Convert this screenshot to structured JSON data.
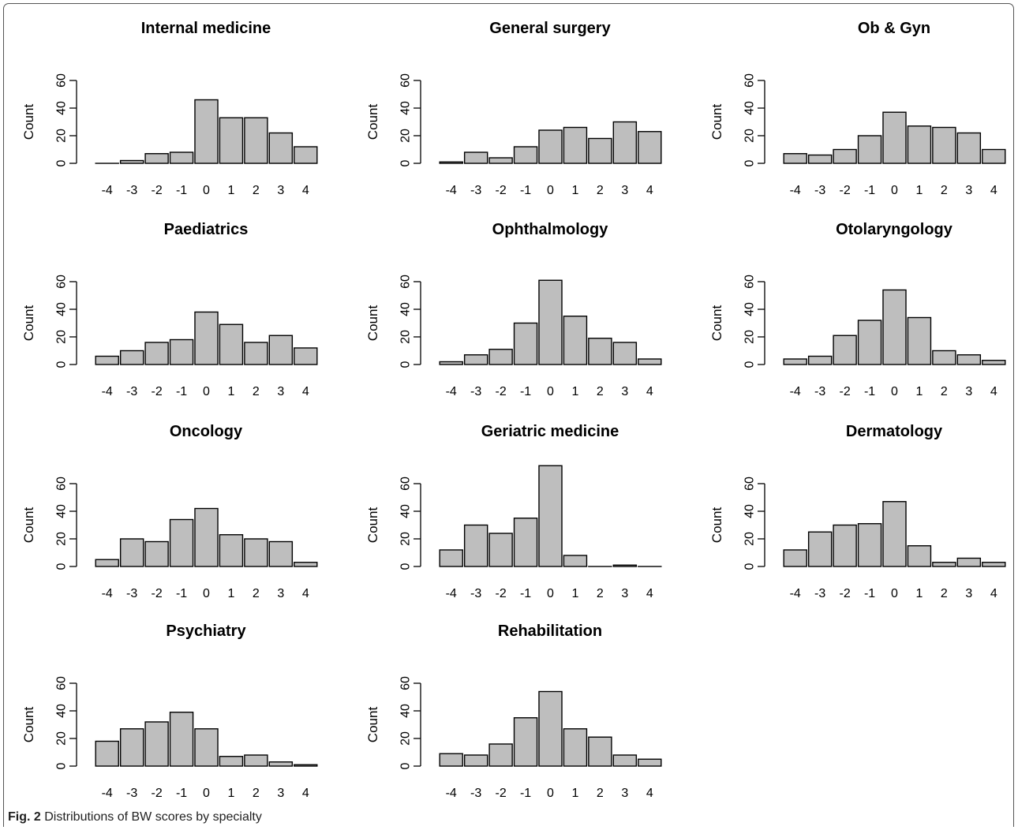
{
  "caption": {
    "label": "Fig. 2",
    "text": " Distributions of BW scores by specialty"
  },
  "style": {
    "bar_fill": "#bebebe",
    "bar_stroke": "#000000",
    "axis_color": "#000000",
    "text_color": "#000000"
  },
  "chart_data": [
    {
      "type": "bar",
      "title": "Internal medicine",
      "ylabel": "Count",
      "xlabel": "",
      "categories": [
        "-4",
        "-3",
        "-2",
        "-1",
        "0",
        "1",
        "2",
        "3",
        "4"
      ],
      "values": [
        0,
        2,
        7,
        8,
        46,
        33,
        33,
        22,
        12
      ],
      "yticks": [
        0,
        20,
        40,
        60
      ],
      "ylim": [
        0,
        70
      ],
      "grid": false
    },
    {
      "type": "bar",
      "title": "General surgery",
      "ylabel": "Count",
      "xlabel": "",
      "categories": [
        "-4",
        "-3",
        "-2",
        "-1",
        "0",
        "1",
        "2",
        "3",
        "4"
      ],
      "values": [
        1,
        8,
        4,
        12,
        24,
        26,
        18,
        30,
        23
      ],
      "yticks": [
        0,
        20,
        40,
        60
      ],
      "ylim": [
        0,
        70
      ],
      "grid": false
    },
    {
      "type": "bar",
      "title": "Ob & Gyn",
      "ylabel": "Count",
      "xlabel": "",
      "categories": [
        "-4",
        "-3",
        "-2",
        "-1",
        "0",
        "1",
        "2",
        "3",
        "4"
      ],
      "values": [
        7,
        6,
        10,
        20,
        37,
        27,
        26,
        22,
        10
      ],
      "yticks": [
        0,
        20,
        40,
        60
      ],
      "ylim": [
        0,
        70
      ],
      "grid": false
    },
    {
      "type": "bar",
      "title": "Paediatrics",
      "ylabel": "Count",
      "xlabel": "",
      "categories": [
        "-4",
        "-3",
        "-2",
        "-1",
        "0",
        "1",
        "2",
        "3",
        "4"
      ],
      "values": [
        6,
        10,
        16,
        18,
        38,
        29,
        16,
        21,
        12
      ],
      "yticks": [
        0,
        20,
        40,
        60
      ],
      "ylim": [
        0,
        70
      ],
      "grid": false
    },
    {
      "type": "bar",
      "title": "Ophthalmology",
      "ylabel": "Count",
      "xlabel": "",
      "categories": [
        "-4",
        "-3",
        "-2",
        "-1",
        "0",
        "1",
        "2",
        "3",
        "4"
      ],
      "values": [
        2,
        7,
        11,
        30,
        61,
        35,
        19,
        16,
        4
      ],
      "yticks": [
        0,
        20,
        40,
        60
      ],
      "ylim": [
        0,
        70
      ],
      "grid": false
    },
    {
      "type": "bar",
      "title": "Otolaryngology",
      "ylabel": "Count",
      "xlabel": "",
      "categories": [
        "-4",
        "-3",
        "-2",
        "-1",
        "0",
        "1",
        "2",
        "3",
        "4"
      ],
      "values": [
        4,
        6,
        21,
        32,
        54,
        34,
        10,
        7,
        3
      ],
      "yticks": [
        0,
        20,
        40,
        60
      ],
      "ylim": [
        0,
        70
      ],
      "grid": false
    },
    {
      "type": "bar",
      "title": "Oncology",
      "ylabel": "Count",
      "xlabel": "",
      "categories": [
        "-4",
        "-3",
        "-2",
        "-1",
        "0",
        "1",
        "2",
        "3",
        "4"
      ],
      "values": [
        5,
        20,
        18,
        34,
        42,
        23,
        20,
        18,
        3
      ],
      "yticks": [
        0,
        20,
        40,
        60
      ],
      "ylim": [
        0,
        70
      ],
      "grid": false
    },
    {
      "type": "bar",
      "title": "Geriatric medicine",
      "ylabel": "Count",
      "xlabel": "",
      "categories": [
        "-4",
        "-3",
        "-2",
        "-1",
        "0",
        "1",
        "2",
        "3",
        "4"
      ],
      "values": [
        12,
        30,
        24,
        35,
        73,
        8,
        0,
        1,
        0
      ],
      "yticks": [
        0,
        20,
        40,
        60
      ],
      "ylim": [
        0,
        70
      ],
      "grid": false
    },
    {
      "type": "bar",
      "title": "Dermatology",
      "ylabel": "Count",
      "xlabel": "",
      "categories": [
        "-4",
        "-3",
        "-2",
        "-1",
        "0",
        "1",
        "2",
        "3",
        "4"
      ],
      "values": [
        12,
        25,
        30,
        31,
        47,
        15,
        3,
        6,
        3
      ],
      "yticks": [
        0,
        20,
        40,
        60
      ],
      "ylim": [
        0,
        70
      ],
      "grid": false
    },
    {
      "type": "bar",
      "title": "Psychiatry",
      "ylabel": "Count",
      "xlabel": "",
      "categories": [
        "-4",
        "-3",
        "-2",
        "-1",
        "0",
        "1",
        "2",
        "3",
        "4"
      ],
      "values": [
        18,
        27,
        32,
        39,
        27,
        7,
        8,
        3,
        1
      ],
      "yticks": [
        0,
        20,
        40,
        60
      ],
      "ylim": [
        0,
        70
      ],
      "grid": false
    },
    {
      "type": "bar",
      "title": "Rehabilitation",
      "ylabel": "Count",
      "xlabel": "",
      "categories": [
        "-4",
        "-3",
        "-2",
        "-1",
        "0",
        "1",
        "2",
        "3",
        "4"
      ],
      "values": [
        9,
        8,
        16,
        35,
        54,
        27,
        21,
        8,
        5
      ],
      "yticks": [
        0,
        20,
        40,
        60
      ],
      "ylim": [
        0,
        70
      ],
      "grid": false
    }
  ]
}
